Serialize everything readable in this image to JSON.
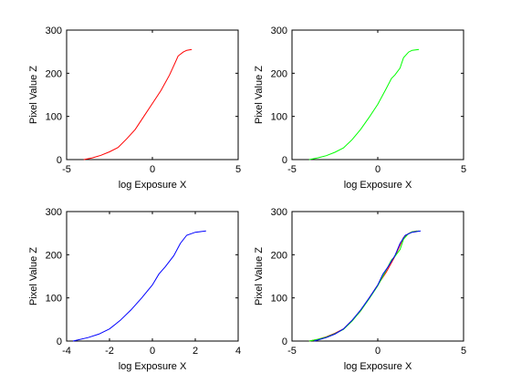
{
  "chart_data": [
    {
      "type": "line",
      "xlabel": "log Exposure X",
      "ylabel": "Pixel Value Z",
      "xlim": [
        -5,
        5
      ],
      "ylim": [
        0,
        300
      ],
      "xticks": [
        -5,
        0,
        5
      ],
      "yticks": [
        0,
        100,
        200,
        300
      ],
      "grid": false,
      "series": [
        {
          "color": "#ff0000",
          "x": [
            -4.0,
            -3.5,
            -3.0,
            -2.5,
            -2.0,
            -1.5,
            -1.0,
            -0.5,
            0.0,
            0.5,
            1.0,
            1.3,
            1.5,
            1.8,
            2.0,
            2.3
          ],
          "y": [
            0,
            4,
            10,
            18,
            28,
            48,
            70,
            100,
            130,
            160,
            196,
            222,
            240,
            249,
            253,
            255
          ]
        }
      ]
    },
    {
      "type": "line",
      "xlabel": "log Exposure X",
      "ylabel": "Pixel Value Z",
      "xlim": [
        -5,
        5
      ],
      "ylim": [
        0,
        300
      ],
      "xticks": [
        -5,
        0,
        5
      ],
      "yticks": [
        0,
        100,
        200,
        300
      ],
      "grid": false,
      "series": [
        {
          "color": "#00ff00",
          "x": [
            -4.0,
            -3.5,
            -3.0,
            -2.5,
            -2.0,
            -1.5,
            -1.0,
            -0.5,
            0.0,
            0.5,
            0.8,
            1.0,
            1.3,
            1.5,
            1.8,
            2.0,
            2.4
          ],
          "y": [
            0,
            4,
            9,
            17,
            27,
            46,
            70,
            98,
            128,
            165,
            188,
            196,
            212,
            236,
            249,
            253,
            255
          ]
        }
      ]
    },
    {
      "type": "line",
      "xlabel": "log Exposure X",
      "ylabel": "Pixel Value Z",
      "xlim": [
        -4,
        4
      ],
      "ylim": [
        0,
        300
      ],
      "xticks": [
        -4,
        -2,
        0,
        2,
        4
      ],
      "yticks": [
        0,
        100,
        200,
        300
      ],
      "grid": false,
      "series": [
        {
          "color": "#0000ff",
          "x": [
            -3.7,
            -3.0,
            -2.5,
            -2.0,
            -1.5,
            -1.0,
            -0.5,
            0.0,
            0.3,
            0.6,
            1.0,
            1.3,
            1.6,
            2.0,
            2.5
          ],
          "y": [
            0,
            8,
            16,
            28,
            48,
            72,
            100,
            130,
            155,
            172,
            198,
            226,
            245,
            252,
            255
          ]
        }
      ]
    },
    {
      "type": "line",
      "xlabel": "log Exposure X",
      "ylabel": "Pixel Value Z",
      "xlim": [
        -5,
        5
      ],
      "ylim": [
        0,
        300
      ],
      "xticks": [
        -5,
        0,
        5
      ],
      "yticks": [
        0,
        100,
        200,
        300
      ],
      "grid": false,
      "series": [
        {
          "color": "#ff0000",
          "x": [
            -4.0,
            -3.5,
            -3.0,
            -2.5,
            -2.0,
            -1.5,
            -1.0,
            -0.5,
            0.0,
            0.5,
            1.0,
            1.3,
            1.5,
            1.8,
            2.0,
            2.3
          ],
          "y": [
            0,
            4,
            10,
            18,
            28,
            48,
            70,
            100,
            130,
            160,
            196,
            222,
            240,
            249,
            253,
            255
          ]
        },
        {
          "color": "#00ff00",
          "x": [
            -4.0,
            -3.5,
            -3.0,
            -2.5,
            -2.0,
            -1.5,
            -1.0,
            -0.5,
            0.0,
            0.5,
            0.8,
            1.0,
            1.3,
            1.5,
            1.8,
            2.0,
            2.4
          ],
          "y": [
            0,
            4,
            9,
            17,
            27,
            46,
            70,
            98,
            128,
            165,
            188,
            196,
            212,
            236,
            249,
            253,
            255
          ]
        },
        {
          "color": "#0000ff",
          "x": [
            -3.7,
            -3.0,
            -2.5,
            -2.0,
            -1.5,
            -1.0,
            -0.5,
            0.0,
            0.3,
            0.6,
            1.0,
            1.3,
            1.6,
            2.0,
            2.5
          ],
          "y": [
            0,
            8,
            16,
            28,
            48,
            72,
            100,
            130,
            155,
            172,
            198,
            226,
            245,
            252,
            255
          ]
        }
      ]
    }
  ]
}
